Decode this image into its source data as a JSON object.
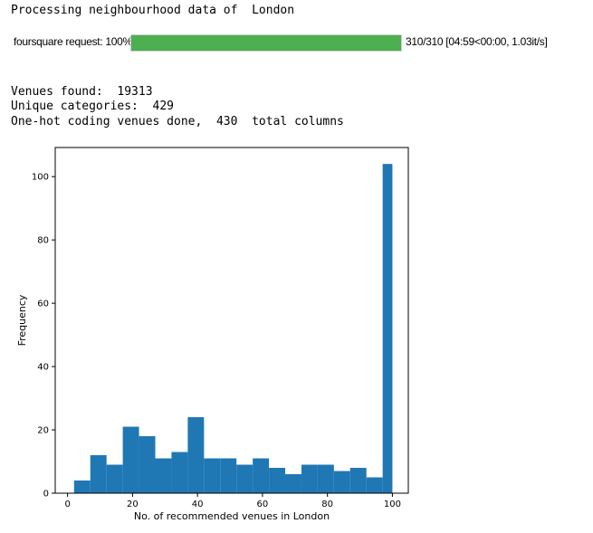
{
  "output": {
    "processing_line": "Processing neighbourhood data of  London",
    "progress": {
      "label": "foursquare request: 100%",
      "fraction": 1.0,
      "stats": "310/310 [04:59<00:00, 1.03it/s]",
      "bar_color": "#4caf50"
    },
    "venues_found": "Venues found:  19313",
    "unique_categories": "Unique categories:  429",
    "onehot_line": "One-hot coding venues done,  430  total columns"
  },
  "chart_data": {
    "type": "bar",
    "subtype": "histogram",
    "xlabel": "No. of recommended venues in London",
    "ylabel": "Frequency",
    "xlim": [
      -3.8,
      104.9
    ],
    "ylim": [
      0,
      109.2
    ],
    "xticks": [
      "0",
      "20",
      "40",
      "60",
      "80",
      "100"
    ],
    "yticks": [
      "0",
      "20",
      "40",
      "60",
      "80",
      "100"
    ],
    "bar_color": "#1f77b4",
    "bin_edges": [
      2,
      7,
      12,
      17,
      22,
      27,
      32,
      37,
      42,
      47,
      52,
      57,
      62,
      67,
      72,
      77,
      82,
      87,
      92,
      97,
      100
    ],
    "values": [
      4,
      12,
      9,
      21,
      18,
      11,
      13,
      24,
      11,
      11,
      9,
      11,
      8,
      6,
      9,
      9,
      7,
      8,
      5,
      104
    ]
  }
}
